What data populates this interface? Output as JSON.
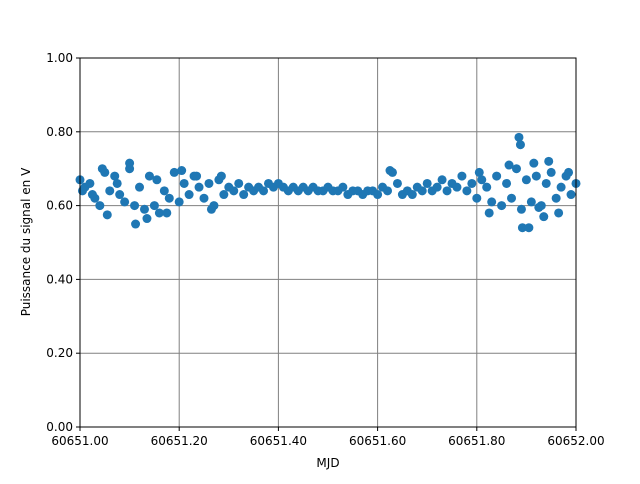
{
  "chart_data": {
    "type": "scatter",
    "xlabel": "MJD",
    "ylabel": "Puissance du signal en V",
    "xlim": [
      60651.0,
      60652.0
    ],
    "xticks": [
      {
        "value": 60651.0,
        "label": "60651.00"
      },
      {
        "value": 60651.2,
        "label": "60651.20"
      },
      {
        "value": 60651.4,
        "label": "60651.40"
      },
      {
        "value": 60651.6,
        "label": "60651.60"
      },
      {
        "value": 60651.8,
        "label": "60651.80"
      },
      {
        "value": 60652.0,
        "label": "60652.00"
      }
    ],
    "ylim": [
      0,
      1
    ],
    "yticks": [
      {
        "value": 0,
        "label": "0.00"
      },
      {
        "value": 0.2,
        "label": "0.20"
      },
      {
        "value": 0.4,
        "label": "0.40"
      },
      {
        "value": 0.6,
        "label": "0.60"
      },
      {
        "value": 0.8,
        "label": "0.80"
      },
      {
        "value": 1,
        "label": "1.00"
      }
    ],
    "grid": true,
    "color": "#1f77b4",
    "x": [
      60651.0,
      60651.01,
      60651.02,
      60651.03,
      60651.04,
      60651.05,
      60651.06,
      60651.07,
      60651.08,
      60651.09,
      60651.1,
      60651.11,
      60651.12,
      60651.13,
      60651.14,
      60651.15,
      60651.16,
      60651.17,
      60651.18,
      60651.19,
      60651.2,
      60651.21,
      60651.22,
      60651.23,
      60651.24,
      60651.25,
      60651.26,
      60651.27,
      60651.28,
      60651.29,
      60651.3,
      60651.31,
      60651.32,
      60651.33,
      60651.34,
      60651.35,
      60651.36,
      60651.37,
      60651.38,
      60651.39,
      60651.4,
      60651.41,
      60651.42,
      60651.43,
      60651.44,
      60651.45,
      60651.46,
      60651.47,
      60651.48,
      60651.49,
      60651.5,
      60651.51,
      60651.52,
      60651.53,
      60651.54,
      60651.55,
      60651.56,
      60651.57,
      60651.58,
      60651.59,
      60651.6,
      60651.61,
      60651.62,
      60651.63,
      60651.64,
      60651.65,
      60651.66,
      60651.67,
      60651.68,
      60651.69,
      60651.7,
      60651.71,
      60651.72,
      60651.73,
      60651.74,
      60651.75,
      60651.76,
      60651.77,
      60651.78,
      60651.79,
      60651.8,
      60651.81,
      60651.82,
      60651.83,
      60651.84,
      60651.85,
      60651.86,
      60651.87,
      60651.88,
      60651.89,
      60651.9,
      60651.91,
      60651.92,
      60651.93,
      60651.94,
      60651.95,
      60651.96,
      60651.97,
      60651.98,
      60651.99,
      60652.0,
      60651.005,
      60651.025,
      60651.045,
      60651.055,
      60651.075,
      60651.1,
      60651.112,
      60651.135,
      60651.155,
      60651.175,
      60651.205,
      60651.235,
      60651.265,
      60651.285,
      60651.625,
      60651.805,
      60651.825,
      60651.865,
      60651.885,
      60651.888,
      60651.892,
      60651.905,
      60651.915,
      60651.925,
      60651.935,
      60651.945,
      60651.965,
      60651.985
    ],
    "values": [
      0.67,
      0.65,
      0.66,
      0.62,
      0.6,
      0.69,
      0.64,
      0.68,
      0.63,
      0.61,
      0.7,
      0.6,
      0.65,
      0.59,
      0.68,
      0.6,
      0.58,
      0.64,
      0.62,
      0.69,
      0.61,
      0.66,
      0.63,
      0.68,
      0.65,
      0.62,
      0.66,
      0.6,
      0.67,
      0.63,
      0.65,
      0.64,
      0.66,
      0.63,
      0.65,
      0.64,
      0.65,
      0.64,
      0.66,
      0.65,
      0.66,
      0.65,
      0.64,
      0.65,
      0.64,
      0.65,
      0.64,
      0.65,
      0.64,
      0.64,
      0.65,
      0.64,
      0.64,
      0.65,
      0.63,
      0.64,
      0.64,
      0.63,
      0.64,
      0.64,
      0.63,
      0.65,
      0.64,
      0.69,
      0.66,
      0.63,
      0.64,
      0.63,
      0.65,
      0.64,
      0.66,
      0.64,
      0.65,
      0.67,
      0.64,
      0.66,
      0.65,
      0.68,
      0.64,
      0.66,
      0.62,
      0.67,
      0.65,
      0.61,
      0.68,
      0.6,
      0.66,
      0.62,
      0.7,
      0.59,
      0.67,
      0.61,
      0.68,
      0.6,
      0.66,
      0.69,
      0.62,
      0.65,
      0.68,
      0.63,
      0.66,
      0.64,
      0.63,
      0.7,
      0.575,
      0.66,
      0.715,
      0.55,
      0.565,
      0.67,
      0.58,
      0.695,
      0.68,
      0.59,
      0.68,
      0.695,
      0.69,
      0.58,
      0.71,
      0.785,
      0.765,
      0.54,
      0.54,
      0.715,
      0.595,
      0.57,
      0.72,
      0.58,
      0.69
    ]
  }
}
